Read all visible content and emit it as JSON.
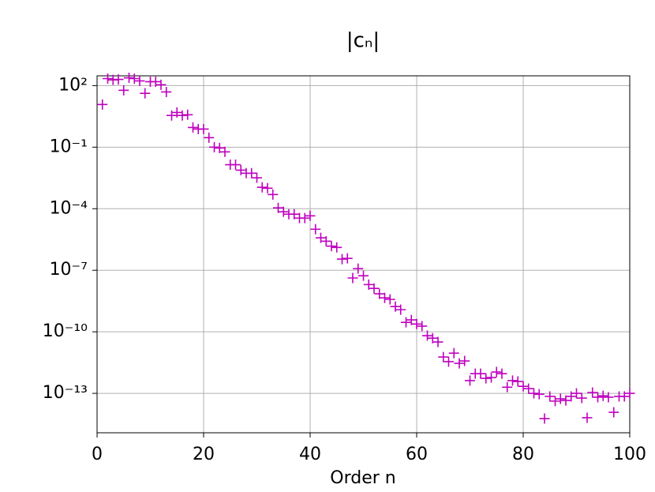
{
  "chart_data": {
    "type": "scatter",
    "title": "|cₙ|",
    "xlabel": "Order n",
    "log_y": true,
    "grid": true,
    "marker": "+",
    "xlim": [
      0,
      100
    ],
    "xticks": [
      0,
      20,
      40,
      60,
      80,
      100
    ],
    "ylim": [
      1.2e-15,
      300
    ],
    "yticks": [
      {
        "value": 100,
        "label": "10²"
      },
      {
        "value": 0.1,
        "label": "10⁻¹"
      },
      {
        "value": 0.0001,
        "label": "10⁻⁴"
      },
      {
        "value": 1e-07,
        "label": "10⁻⁷"
      },
      {
        "value": 1e-10,
        "label": "10⁻¹⁰"
      },
      {
        "value": 1e-13,
        "label": "10⁻¹³"
      }
    ],
    "x": [
      1,
      2,
      3,
      4,
      5,
      6,
      7,
      8,
      9,
      10,
      11,
      12,
      13,
      14,
      15,
      16,
      17,
      18,
      19,
      20,
      21,
      22,
      23,
      24,
      25,
      26,
      27,
      28,
      29,
      30,
      31,
      32,
      33,
      34,
      35,
      36,
      37,
      38,
      39,
      40,
      41,
      42,
      43,
      44,
      45,
      46,
      47,
      48,
      49,
      50,
      51,
      52,
      53,
      54,
      55,
      56,
      57,
      58,
      59,
      60,
      61,
      62,
      63,
      64,
      65,
      66,
      67,
      68,
      69,
      70,
      71,
      72,
      73,
      74,
      75,
      76,
      77,
      78,
      79,
      80,
      81,
      82,
      83,
      84,
      85,
      86,
      87,
      88,
      89,
      90,
      91,
      92,
      93,
      94,
      95,
      96,
      97,
      98,
      99,
      100
    ],
    "series": [
      {
        "name": "|cₙ|",
        "color": "#bf00bf",
        "values": [
          12,
          220,
          190,
          200,
          59,
          240,
          220,
          170,
          42,
          155,
          155,
          110,
          49,
          3.5,
          4.9,
          3.5,
          3.8,
          0.91,
          0.76,
          0.76,
          0.29,
          0.1,
          0.091,
          0.059,
          0.014,
          0.014,
          0.0076,
          0.0054,
          0.0054,
          0.0032,
          0.0011,
          0.001,
          0.00049,
          0.00011,
          7.1e-05,
          5.4e-05,
          5.4e-05,
          3.5e-05,
          3.5e-05,
          4.5e-05,
          1e-05,
          3.8e-06,
          2.6e-06,
          1.5e-06,
          1.3e-06,
          3.5e-07,
          3.8e-07,
          4.2e-08,
          1.2e-07,
          5.4e-08,
          2e-08,
          1.3e-08,
          7.1e-09,
          4.5e-09,
          3.8e-09,
          1.7e-09,
          1.2e-09,
          2.9e-10,
          3.8e-10,
          2.4e-10,
          1.9e-10,
          6.5e-11,
          4.9e-11,
          3.2e-11,
          5.9e-12,
          3.5e-12,
          9.1e-12,
          2.9e-12,
          3.8e-12,
          4.2e-13,
          9.1e-13,
          9.1e-13,
          5.4e-13,
          5.9e-13,
          1.1e-12,
          9.1e-13,
          2e-13,
          4.2e-13,
          3.8e-13,
          2.2e-13,
          1.7e-13,
          1e-13,
          9.1e-14,
          5.9e-15,
          7.1e-14,
          4.2e-14,
          5.4e-14,
          4.5e-14,
          7.1e-14,
          1e-13,
          5.9e-14,
          6.5e-15,
          1.1e-13,
          6.5e-14,
          7.6e-14,
          6.5e-14,
          1.2e-14,
          7.1e-14,
          7.1e-14,
          1e-13
        ]
      }
    ]
  }
}
